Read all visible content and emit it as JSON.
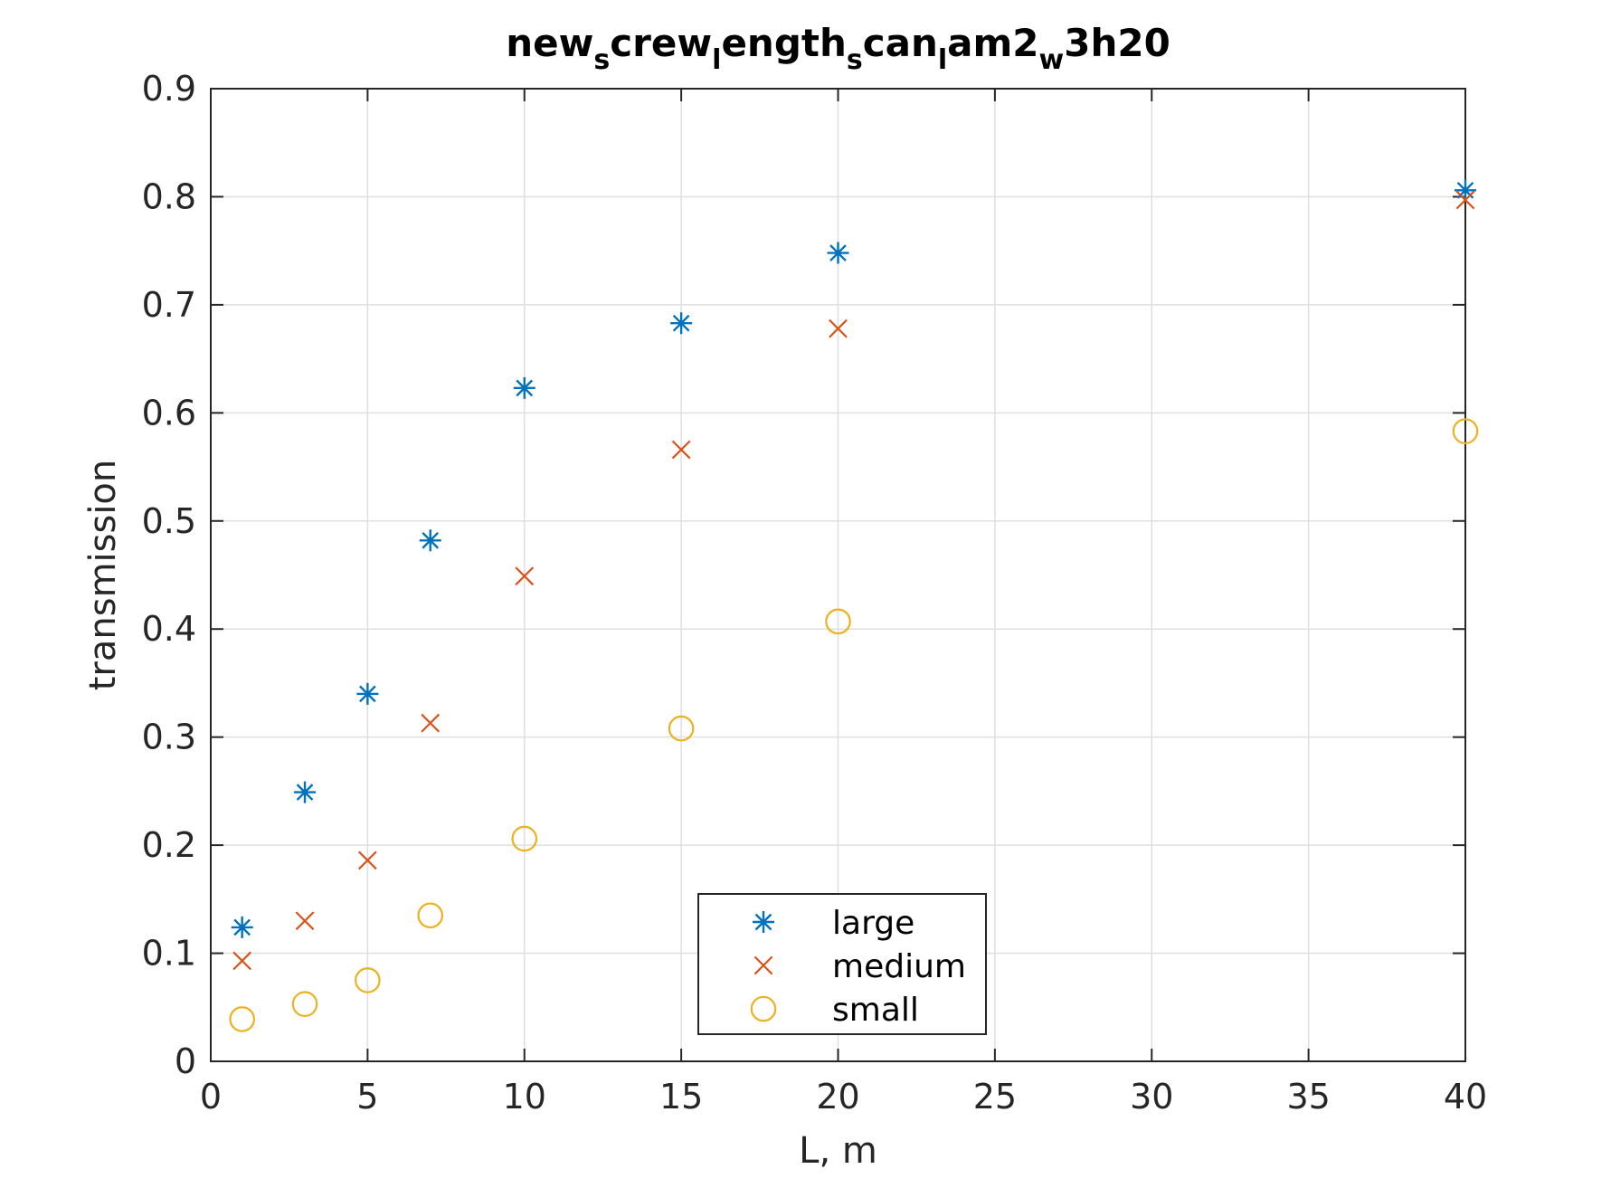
{
  "chart_data": {
    "type": "scatter",
    "title_segments": [
      {
        "text": "new",
        "sub": false
      },
      {
        "text": "s",
        "sub": true
      },
      {
        "text": "crew",
        "sub": false
      },
      {
        "text": "l",
        "sub": true
      },
      {
        "text": "ength",
        "sub": false
      },
      {
        "text": "s",
        "sub": true
      },
      {
        "text": "can",
        "sub": false
      },
      {
        "text": "l",
        "sub": true
      },
      {
        "text": "am2",
        "sub": false
      },
      {
        "text": "w",
        "sub": true
      },
      {
        "text": "3h20",
        "sub": false
      }
    ],
    "xlabel": "L, m",
    "ylabel": "transmission",
    "x_tick_positions": [
      0,
      5,
      10,
      15,
      20,
      25,
      30,
      35,
      40
    ],
    "x_tick_labels": [
      "0",
      "5",
      "10",
      "15",
      "20",
      "25",
      "30",
      "35",
      "40"
    ],
    "y_ticks": [
      0,
      0.1,
      0.2,
      0.3,
      0.4,
      0.5,
      0.6,
      0.7,
      0.8,
      0.9
    ],
    "y_tick_labels": [
      "0",
      "0.1",
      "0.2",
      "0.3",
      "0.4",
      "0.5",
      "0.6",
      "0.7",
      "0.8",
      "0.9"
    ],
    "xlim": [
      0,
      40
    ],
    "ylim": [
      0,
      0.9
    ],
    "grid": true,
    "legend_position": "bottom-center",
    "series": [
      {
        "name": "large",
        "marker": "asterisk",
        "color": "#0072BD",
        "x": [
          1,
          3,
          5,
          7,
          10,
          15,
          20,
          40
        ],
        "y": [
          0.124,
          0.249,
          0.34,
          0.482,
          0.623,
          0.683,
          0.748,
          0.806
        ]
      },
      {
        "name": "medium",
        "marker": "x",
        "color": "#D95319",
        "x": [
          1,
          3,
          5,
          7,
          10,
          15,
          20,
          40
        ],
        "y": [
          0.093,
          0.13,
          0.186,
          0.313,
          0.449,
          0.566,
          0.678,
          0.797
        ]
      },
      {
        "name": "small",
        "marker": "circle",
        "color": "#EDB120",
        "x": [
          1,
          3,
          5,
          7,
          10,
          15,
          20,
          40
        ],
        "y": [
          0.039,
          0.053,
          0.075,
          0.135,
          0.206,
          0.308,
          0.407,
          0.583
        ]
      }
    ]
  }
}
